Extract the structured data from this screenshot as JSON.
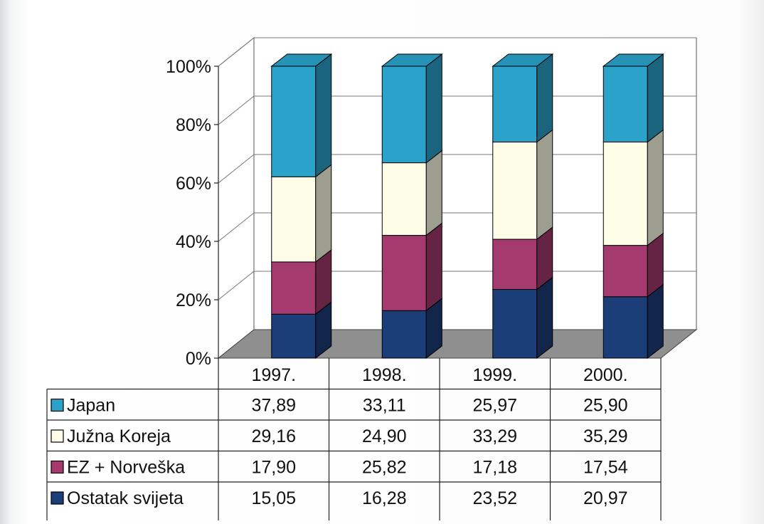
{
  "chart_data": {
    "type": "bar",
    "stacked": true,
    "percent": true,
    "three_d": true,
    "categories": [
      "1997.",
      "1998.",
      "1999.",
      "2000."
    ],
    "series": [
      {
        "name": "Ostatak svijeta",
        "values": [
          15.05,
          16.28,
          23.52,
          20.97
        ]
      },
      {
        "name": "EZ + Norveška",
        "values": [
          17.9,
          25.82,
          17.18,
          17.54
        ]
      },
      {
        "name": "Južna Koreja",
        "values": [
          29.16,
          24.9,
          33.29,
          35.29
        ]
      },
      {
        "name": "Japan",
        "values": [
          37.89,
          33.11,
          25.97,
          25.9
        ]
      }
    ],
    "table_rows": [
      {
        "label": "Japan",
        "values": [
          "37,89",
          "33,11",
          "25,97",
          "25,90"
        ]
      },
      {
        "label": "Južna Koreja",
        "values": [
          "29,16",
          "24,90",
          "33,29",
          "35,29"
        ]
      },
      {
        "label": "EZ + Norveška",
        "values": [
          "17,90",
          "25,82",
          "17,18",
          "17,54"
        ]
      },
      {
        "label": "Ostatak svijeta",
        "values": [
          "15,05",
          "16,28",
          "23,52",
          "20,97"
        ]
      }
    ],
    "yticks": [
      "0%",
      "20%",
      "40%",
      "60%",
      "80%",
      "100%"
    ],
    "ylim": [
      0,
      100
    ],
    "grid": true,
    "legend": "table-left",
    "colors": {
      "Japan": "#2aa2c9",
      "Južna Koreja": "#fdfde8",
      "EZ + Norveška": "#a43a6e",
      "Ostatak svijeta": "#1b3e78"
    }
  }
}
